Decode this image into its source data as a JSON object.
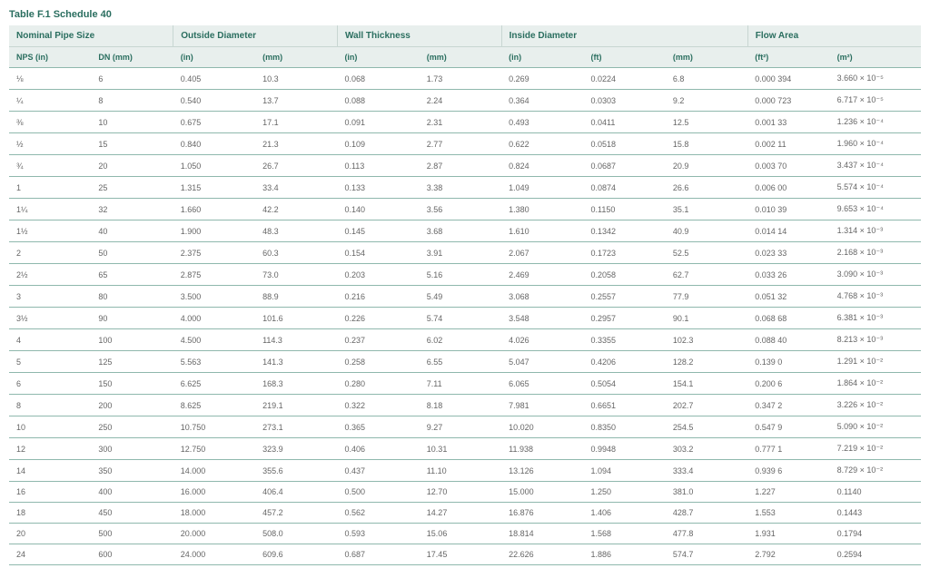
{
  "title": "Table F.1 Schedule 40",
  "colors": {
    "header_bg": "#e8efed",
    "header_text": "#2a6e5f",
    "row_border": "#8fb8ad",
    "cell_text": "#666666",
    "background": "#ffffff"
  },
  "typography": {
    "title_fontsize_pt": 11,
    "header_fontsize_pt": 10,
    "subheader_fontsize_pt": 9,
    "cell_fontsize_pt": 9,
    "font_family": "Arial"
  },
  "columns": {
    "groups": [
      {
        "label": "Nominal Pipe Size",
        "span": 2
      },
      {
        "label": "Outside Diameter",
        "span": 2
      },
      {
        "label": "Wall Thickness",
        "span": 2
      },
      {
        "label": "Inside Diameter",
        "span": 3
      },
      {
        "label": "Flow Area",
        "span": 2
      }
    ],
    "sub": [
      "NPS (in)",
      "DN (mm)",
      "(in)",
      "(mm)",
      "(in)",
      "(mm)",
      "(in)",
      "(ft)",
      "(mm)",
      "(ft²)",
      "(m²)"
    ],
    "widths_pct": [
      9,
      9,
      9,
      9,
      9,
      9,
      9,
      9,
      9,
      9,
      10
    ]
  },
  "rows": [
    [
      "⅛",
      "6",
      "0.405",
      "10.3",
      "0.068",
      "1.73",
      "0.269",
      "0.0224",
      "6.8",
      "0.000 394",
      "3.660 × 10⁻⁵"
    ],
    [
      "¼",
      "8",
      "0.540",
      "13.7",
      "0.088",
      "2.24",
      "0.364",
      "0.0303",
      "9.2",
      "0.000 723",
      "6.717 × 10⁻⁵"
    ],
    [
      "⅜",
      "10",
      "0.675",
      "17.1",
      "0.091",
      "2.31",
      "0.493",
      "0.0411",
      "12.5",
      "0.001 33",
      "1.236 × 10⁻⁴"
    ],
    [
      "½",
      "15",
      "0.840",
      "21.3",
      "0.109",
      "2.77",
      "0.622",
      "0.0518",
      "15.8",
      "0.002 11",
      "1.960 × 10⁻⁴"
    ],
    [
      "¾",
      "20",
      "1.050",
      "26.7",
      "0.113",
      "2.87",
      "0.824",
      "0.0687",
      "20.9",
      "0.003 70",
      "3.437 × 10⁻⁴"
    ],
    [
      "1",
      "25",
      "1.315",
      "33.4",
      "0.133",
      "3.38",
      "1.049",
      "0.0874",
      "26.6",
      "0.006 00",
      "5.574 × 10⁻⁴"
    ],
    [
      "1¼",
      "32",
      "1.660",
      "42.2",
      "0.140",
      "3.56",
      "1.380",
      "0.1150",
      "35.1",
      "0.010 39",
      "9.653 × 10⁻⁴"
    ],
    [
      "1½",
      "40",
      "1.900",
      "48.3",
      "0.145",
      "3.68",
      "1.610",
      "0.1342",
      "40.9",
      "0.014 14",
      "1.314 × 10⁻³"
    ],
    [
      "2",
      "50",
      "2.375",
      "60.3",
      "0.154",
      "3.91",
      "2.067",
      "0.1723",
      "52.5",
      "0.023 33",
      "2.168 × 10⁻³"
    ],
    [
      "2½",
      "65",
      "2.875",
      "73.0",
      "0.203",
      "5.16",
      "2.469",
      "0.2058",
      "62.7",
      "0.033 26",
      "3.090 × 10⁻³"
    ],
    [
      "3",
      "80",
      "3.500",
      "88.9",
      "0.216",
      "5.49",
      "3.068",
      "0.2557",
      "77.9",
      "0.051 32",
      "4.768 × 10⁻³"
    ],
    [
      "3½",
      "90",
      "4.000",
      "101.6",
      "0.226",
      "5.74",
      "3.548",
      "0.2957",
      "90.1",
      "0.068 68",
      "6.381 × 10⁻³"
    ],
    [
      "4",
      "100",
      "4.500",
      "114.3",
      "0.237",
      "6.02",
      "4.026",
      "0.3355",
      "102.3",
      "0.088 40",
      "8.213 × 10⁻³"
    ],
    [
      "5",
      "125",
      "5.563",
      "141.3",
      "0.258",
      "6.55",
      "5.047",
      "0.4206",
      "128.2",
      "0.139 0",
      "1.291 × 10⁻²"
    ],
    [
      "6",
      "150",
      "6.625",
      "168.3",
      "0.280",
      "7.11",
      "6.065",
      "0.5054",
      "154.1",
      "0.200 6",
      "1.864 × 10⁻²"
    ],
    [
      "8",
      "200",
      "8.625",
      "219.1",
      "0.322",
      "8.18",
      "7.981",
      "0.6651",
      "202.7",
      "0.347 2",
      "3.226 × 10⁻²"
    ],
    [
      "10",
      "250",
      "10.750",
      "273.1",
      "0.365",
      "9.27",
      "10.020",
      "0.8350",
      "254.5",
      "0.547 9",
      "5.090 × 10⁻²"
    ],
    [
      "12",
      "300",
      "12.750",
      "323.9",
      "0.406",
      "10.31",
      "11.938",
      "0.9948",
      "303.2",
      "0.777 1",
      "7.219 × 10⁻²"
    ],
    [
      "14",
      "350",
      "14.000",
      "355.6",
      "0.437",
      "11.10",
      "13.126",
      "1.094",
      "333.4",
      "0.939 6",
      "8.729 × 10⁻²"
    ],
    [
      "16",
      "400",
      "16.000",
      "406.4",
      "0.500",
      "12.70",
      "15.000",
      "1.250",
      "381.0",
      "1.227",
      "0.1140"
    ],
    [
      "18",
      "450",
      "18.000",
      "457.2",
      "0.562",
      "14.27",
      "16.876",
      "1.406",
      "428.7",
      "1.553",
      "0.1443"
    ],
    [
      "20",
      "500",
      "20.000",
      "508.0",
      "0.593",
      "15.06",
      "18.814",
      "1.568",
      "477.8",
      "1.931",
      "0.1794"
    ],
    [
      "24",
      "600",
      "24.000",
      "609.6",
      "0.687",
      "17.45",
      "22.626",
      "1.886",
      "574.7",
      "2.792",
      "0.2594"
    ]
  ]
}
